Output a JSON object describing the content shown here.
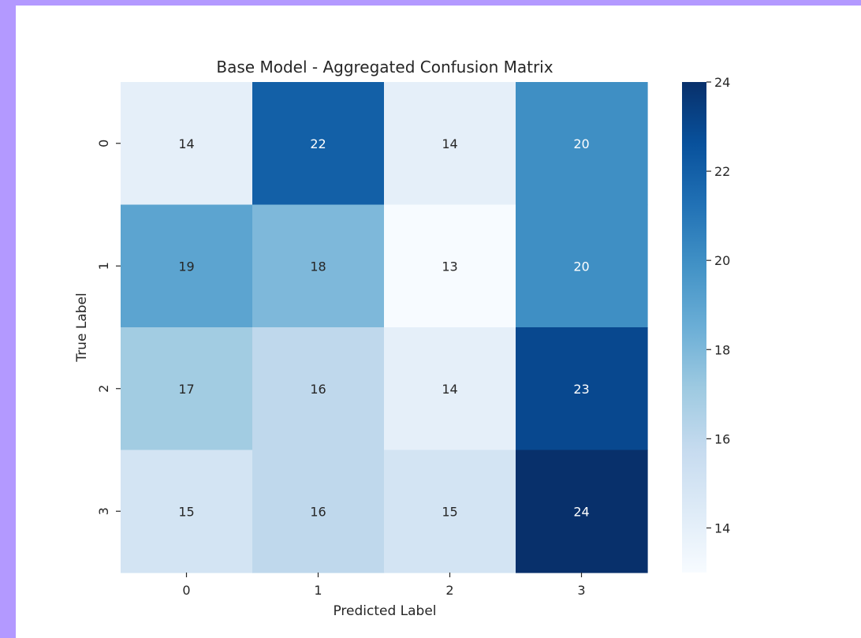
{
  "chart_data": {
    "type": "heatmap",
    "title": "Base Model - Aggregated Confusion Matrix",
    "xlabel": "Predicted Label",
    "ylabel": "True Label",
    "x_categories": [
      "0",
      "1",
      "2",
      "3"
    ],
    "y_categories": [
      "0",
      "1",
      "2",
      "3"
    ],
    "values": [
      [
        14,
        22,
        14,
        20
      ],
      [
        19,
        18,
        13,
        20
      ],
      [
        17,
        16,
        14,
        23
      ],
      [
        15,
        16,
        15,
        24
      ]
    ],
    "colormap": "Blues",
    "color_range": [
      13,
      24
    ],
    "colorbar_ticks": [
      14,
      16,
      18,
      20,
      22,
      24
    ],
    "colors": {
      "low": "#f7fbff",
      "high": "#08306b"
    }
  }
}
